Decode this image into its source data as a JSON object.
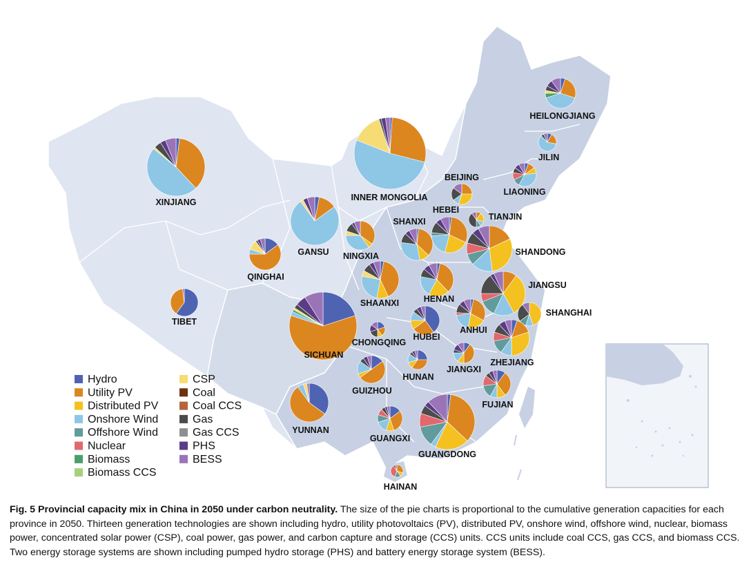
{
  "colors": {
    "Hydro": "#4f63b3",
    "Utility PV": "#dc8620",
    "Distributed PV": "#f4c120",
    "Onshore Wind": "#8ec6e6",
    "Offshore Wind": "#619b9c",
    "Nuclear": "#e1686d",
    "Biomass": "#4d9f6a",
    "Biomass CCS": "#a4d27b",
    "CSP": "#f7dc75",
    "Coal": "#6e3114",
    "Coal CCS": "#b2663c",
    "Gas": "#4b4b4b",
    "Gas CCS": "#8f8f8f",
    "PHS": "#5b3c87",
    "BESS": "#9b74b8"
  },
  "legend": {
    "col1": [
      "Hydro",
      "Utility PV",
      "Distributed PV",
      "Onshore Wind",
      "Offshore Wind",
      "Nuclear",
      "Biomass",
      "Biomass CCS"
    ],
    "col2": [
      "CSP",
      "Coal",
      "Coal CCS",
      "Gas",
      "Gas CCS",
      "PHS",
      "BESS"
    ]
  },
  "caption": {
    "title": "Fig. 5 Provincial capacity mix in China in 2050 under carbon neutrality.",
    "body": " The size of the pie charts is proportional to the cumulative generation capacities for each province in 2050. Thirteen generation technologies are shown including hydro, utility photovoltaics (PV), distributed PV, onshore wind, offshore wind, nuclear, biomass power, concentrated solar power (CSP), coal power, gas power, and carbon capture and storage (CCS) units. CCS units include coal CCS, gas CCS, and biomass CCS. Two energy storage systems are shown including pumped hydro storage (PHS) and battery energy storage system (BESS)."
  },
  "chart_data": {
    "type": "pie",
    "title": "",
    "size_encoding": "cumulative generation capacity",
    "provinces": [
      {
        "name": "XINJIANG",
        "slices": [
          [
            "Hydro",
            2
          ],
          [
            "Utility PV",
            36
          ],
          [
            "Onshore Wind",
            48
          ],
          [
            "CSP",
            1
          ],
          [
            "Gas",
            4
          ],
          [
            "PHS",
            3
          ],
          [
            "BESS",
            6
          ]
        ]
      },
      {
        "name": "INNER MONGOLIA",
        "slices": [
          [
            "Hydro",
            1
          ],
          [
            "Utility PV",
            28
          ],
          [
            "Onshore Wind",
            52
          ],
          [
            "CSP",
            14
          ],
          [
            "Gas",
            1
          ],
          [
            "PHS",
            2
          ],
          [
            "BESS",
            2
          ]
        ]
      },
      {
        "name": "HEILONGJIANG",
        "slices": [
          [
            "Hydro",
            5
          ],
          [
            "Utility PV",
            25
          ],
          [
            "Onshore Wind",
            40
          ],
          [
            "Biomass",
            5
          ],
          [
            "CSP",
            3
          ],
          [
            "Gas",
            5
          ],
          [
            "PHS",
            7
          ],
          [
            "BESS",
            10
          ]
        ]
      },
      {
        "name": "JILIN",
        "slices": [
          [
            "Hydro",
            8
          ],
          [
            "Utility PV",
            20
          ],
          [
            "Onshore Wind",
            60
          ],
          [
            "Gas",
            5
          ],
          [
            "BESS",
            7
          ]
        ]
      },
      {
        "name": "LIAONING",
        "slices": [
          [
            "Hydro",
            5
          ],
          [
            "Utility PV",
            10
          ],
          [
            "Distributed PV",
            8
          ],
          [
            "Onshore Wind",
            35
          ],
          [
            "Offshore Wind",
            10
          ],
          [
            "Nuclear",
            10
          ],
          [
            "Gas",
            7
          ],
          [
            "PHS",
            7
          ],
          [
            "BESS",
            8
          ]
        ]
      },
      {
        "name": "BEIJING",
        "slices": [
          [
            "Utility PV",
            25
          ],
          [
            "Distributed PV",
            30
          ],
          [
            "Onshore Wind",
            10
          ],
          [
            "Gas",
            20
          ],
          [
            "BESS",
            15
          ]
        ]
      },
      {
        "name": "TIANJIN",
        "slices": [
          [
            "Utility PV",
            10
          ],
          [
            "Distributed PV",
            20
          ],
          [
            "Onshore Wind",
            10
          ],
          [
            "Offshore Wind",
            10
          ],
          [
            "Gas",
            40
          ],
          [
            "BESS",
            10
          ]
        ]
      },
      {
        "name": "HEBEI",
        "slices": [
          [
            "Hydro",
            2
          ],
          [
            "Utility PV",
            30
          ],
          [
            "Distributed PV",
            22
          ],
          [
            "Onshore Wind",
            20
          ],
          [
            "Offshore Wind",
            3
          ],
          [
            "Gas",
            10
          ],
          [
            "PHS",
            5
          ],
          [
            "BESS",
            8
          ]
        ]
      },
      {
        "name": "SHANXI",
        "slices": [
          [
            "Hydro",
            2
          ],
          [
            "Utility PV",
            35
          ],
          [
            "Distributed PV",
            10
          ],
          [
            "Onshore Wind",
            30
          ],
          [
            "Gas",
            10
          ],
          [
            "PHS",
            5
          ],
          [
            "BESS",
            8
          ]
        ]
      },
      {
        "name": "SHANDONG",
        "slices": [
          [
            "Utility PV",
            18
          ],
          [
            "Distributed PV",
            30
          ],
          [
            "Onshore Wind",
            15
          ],
          [
            "Offshore Wind",
            8
          ],
          [
            "Nuclear",
            8
          ],
          [
            "Gas",
            8
          ],
          [
            "PHS",
            5
          ],
          [
            "BESS",
            8
          ]
        ]
      },
      {
        "name": "GANSU",
        "slices": [
          [
            "Hydro",
            3
          ],
          [
            "Utility PV",
            12
          ],
          [
            "Onshore Wind",
            75
          ],
          [
            "CSP",
            2
          ],
          [
            "PHS",
            3
          ],
          [
            "BESS",
            5
          ]
        ]
      },
      {
        "name": "NINGXIA",
        "slices": [
          [
            "Utility PV",
            35
          ],
          [
            "Distributed PV",
            5
          ],
          [
            "Onshore Wind",
            35
          ],
          [
            "CSP",
            5
          ],
          [
            "Gas",
            10
          ],
          [
            "PHS",
            3
          ],
          [
            "BESS",
            7
          ]
        ]
      },
      {
        "name": "QINGHAI",
        "slices": [
          [
            "Hydro",
            15
          ],
          [
            "Utility PV",
            60
          ],
          [
            "Onshore Wind",
            5
          ],
          [
            "CSP",
            10
          ],
          [
            "Gas",
            2
          ],
          [
            "PHS",
            3
          ],
          [
            "BESS",
            5
          ]
        ]
      },
      {
        "name": "SHAANXI",
        "slices": [
          [
            "Hydro",
            3
          ],
          [
            "Utility PV",
            40
          ],
          [
            "Distributed PV",
            10
          ],
          [
            "Onshore Wind",
            25
          ],
          [
            "CSP",
            5
          ],
          [
            "Gas",
            7
          ],
          [
            "PHS",
            4
          ],
          [
            "BESS",
            6
          ]
        ]
      },
      {
        "name": "HENAN",
        "slices": [
          [
            "Hydro",
            3
          ],
          [
            "Utility PV",
            35
          ],
          [
            "Distributed PV",
            20
          ],
          [
            "Onshore Wind",
            20
          ],
          [
            "Gas",
            8
          ],
          [
            "PHS",
            6
          ],
          [
            "BESS",
            8
          ]
        ]
      },
      {
        "name": "JIANGSU",
        "slices": [
          [
            "Utility PV",
            10
          ],
          [
            "Distributed PV",
            32
          ],
          [
            "Onshore Wind",
            15
          ],
          [
            "Offshore Wind",
            12
          ],
          [
            "Nuclear",
            6
          ],
          [
            "Gas",
            15
          ],
          [
            "PHS",
            3
          ],
          [
            "BESS",
            7
          ]
        ]
      },
      {
        "name": "SHANGHAI",
        "slices": [
          [
            "Distributed PV",
            45
          ],
          [
            "Onshore Wind",
            10
          ],
          [
            "Offshore Wind",
            10
          ],
          [
            "Gas",
            25
          ],
          [
            "BESS",
            10
          ]
        ]
      },
      {
        "name": "TIBET",
        "slices": [
          [
            "Hydro",
            60
          ],
          [
            "Utility PV",
            38
          ],
          [
            "BESS",
            2
          ]
        ]
      },
      {
        "name": "SICHUAN",
        "slices": [
          [
            "Hydro",
            20
          ],
          [
            "Utility PV",
            60
          ],
          [
            "Onshore Wind",
            2
          ],
          [
            "Biomass",
            1
          ],
          [
            "CSP",
            1
          ],
          [
            "Gas",
            2
          ],
          [
            "PHS",
            5
          ],
          [
            "BESS",
            9
          ]
        ]
      },
      {
        "name": "CHONGQING",
        "slices": [
          [
            "Hydro",
            20
          ],
          [
            "Utility PV",
            20
          ],
          [
            "Distributed PV",
            10
          ],
          [
            "Gas",
            20
          ],
          [
            "PHS",
            15
          ],
          [
            "BESS",
            15
          ]
        ]
      },
      {
        "name": "HUBEI",
        "slices": [
          [
            "Hydro",
            40
          ],
          [
            "Utility PV",
            25
          ],
          [
            "Distributed PV",
            10
          ],
          [
            "Onshore Wind",
            10
          ],
          [
            "Gas",
            5
          ],
          [
            "PHS",
            5
          ],
          [
            "BESS",
            5
          ]
        ]
      },
      {
        "name": "ANHUI",
        "slices": [
          [
            "Hydro",
            3
          ],
          [
            "Utility PV",
            30
          ],
          [
            "Distributed PV",
            20
          ],
          [
            "Onshore Wind",
            20
          ],
          [
            "Nuclear",
            3
          ],
          [
            "Gas",
            10
          ],
          [
            "PHS",
            6
          ],
          [
            "BESS",
            8
          ]
        ]
      },
      {
        "name": "ZHEJIANG",
        "slices": [
          [
            "Hydro",
            5
          ],
          [
            "Utility PV",
            15
          ],
          [
            "Distributed PV",
            30
          ],
          [
            "Onshore Wind",
            10
          ],
          [
            "Offshore Wind",
            12
          ],
          [
            "Nuclear",
            8
          ],
          [
            "Gas",
            8
          ],
          [
            "PHS",
            6
          ],
          [
            "BESS",
            6
          ]
        ]
      },
      {
        "name": "HUNAN",
        "slices": [
          [
            "Hydro",
            25
          ],
          [
            "Utility PV",
            35
          ],
          [
            "Distributed PV",
            10
          ],
          [
            "Onshore Wind",
            15
          ],
          [
            "Gas",
            5
          ],
          [
            "PHS",
            5
          ],
          [
            "BESS",
            5
          ]
        ]
      },
      {
        "name": "JIANGXI",
        "slices": [
          [
            "Hydro",
            10
          ],
          [
            "Utility PV",
            40
          ],
          [
            "Distributed PV",
            10
          ],
          [
            "Onshore Wind",
            15
          ],
          [
            "Gas",
            5
          ],
          [
            "PHS",
            10
          ],
          [
            "BESS",
            10
          ]
        ]
      },
      {
        "name": "GUIZHOU",
        "slices": [
          [
            "Hydro",
            15
          ],
          [
            "Utility PV",
            50
          ],
          [
            "Distributed PV",
            5
          ],
          [
            "Onshore Wind",
            15
          ],
          [
            "Gas",
            5
          ],
          [
            "PHS",
            5
          ],
          [
            "BESS",
            5
          ]
        ]
      },
      {
        "name": "YUNNAN",
        "slices": [
          [
            "Hydro",
            35
          ],
          [
            "Utility PV",
            55
          ],
          [
            "Onshore Wind",
            5
          ],
          [
            "CSP",
            3
          ],
          [
            "BESS",
            2
          ]
        ]
      },
      {
        "name": "FUJIAN",
        "slices": [
          [
            "Hydro",
            10
          ],
          [
            "Utility PV",
            30
          ],
          [
            "Distributed PV",
            10
          ],
          [
            "Onshore Wind",
            8
          ],
          [
            "Offshore Wind",
            15
          ],
          [
            "Nuclear",
            12
          ],
          [
            "Gas",
            5
          ],
          [
            "PHS",
            5
          ],
          [
            "BESS",
            5
          ]
        ]
      },
      {
        "name": "GUANGXI",
        "slices": [
          [
            "Hydro",
            15
          ],
          [
            "Utility PV",
            30
          ],
          [
            "Distributed PV",
            10
          ],
          [
            "Onshore Wind",
            15
          ],
          [
            "Offshore Wind",
            10
          ],
          [
            "Nuclear",
            8
          ],
          [
            "Gas",
            5
          ],
          [
            "PHS",
            3
          ],
          [
            "BESS",
            4
          ]
        ]
      },
      {
        "name": "GUANGDONG",
        "slices": [
          [
            "Hydro",
            2
          ],
          [
            "Utility PV",
            35
          ],
          [
            "Distributed PV",
            20
          ],
          [
            "Onshore Wind",
            3
          ],
          [
            "Offshore Wind",
            12
          ],
          [
            "Nuclear",
            8
          ],
          [
            "Gas",
            5
          ],
          [
            "PHS",
            3
          ],
          [
            "BESS",
            12
          ]
        ]
      },
      {
        "name": "HAINAN",
        "slices": [
          [
            "Utility PV",
            30
          ],
          [
            "Distributed PV",
            10
          ],
          [
            "Offshore Wind",
            15
          ],
          [
            "Nuclear",
            35
          ],
          [
            "Gas",
            5
          ],
          [
            "BESS",
            5
          ]
        ]
      }
    ]
  }
}
